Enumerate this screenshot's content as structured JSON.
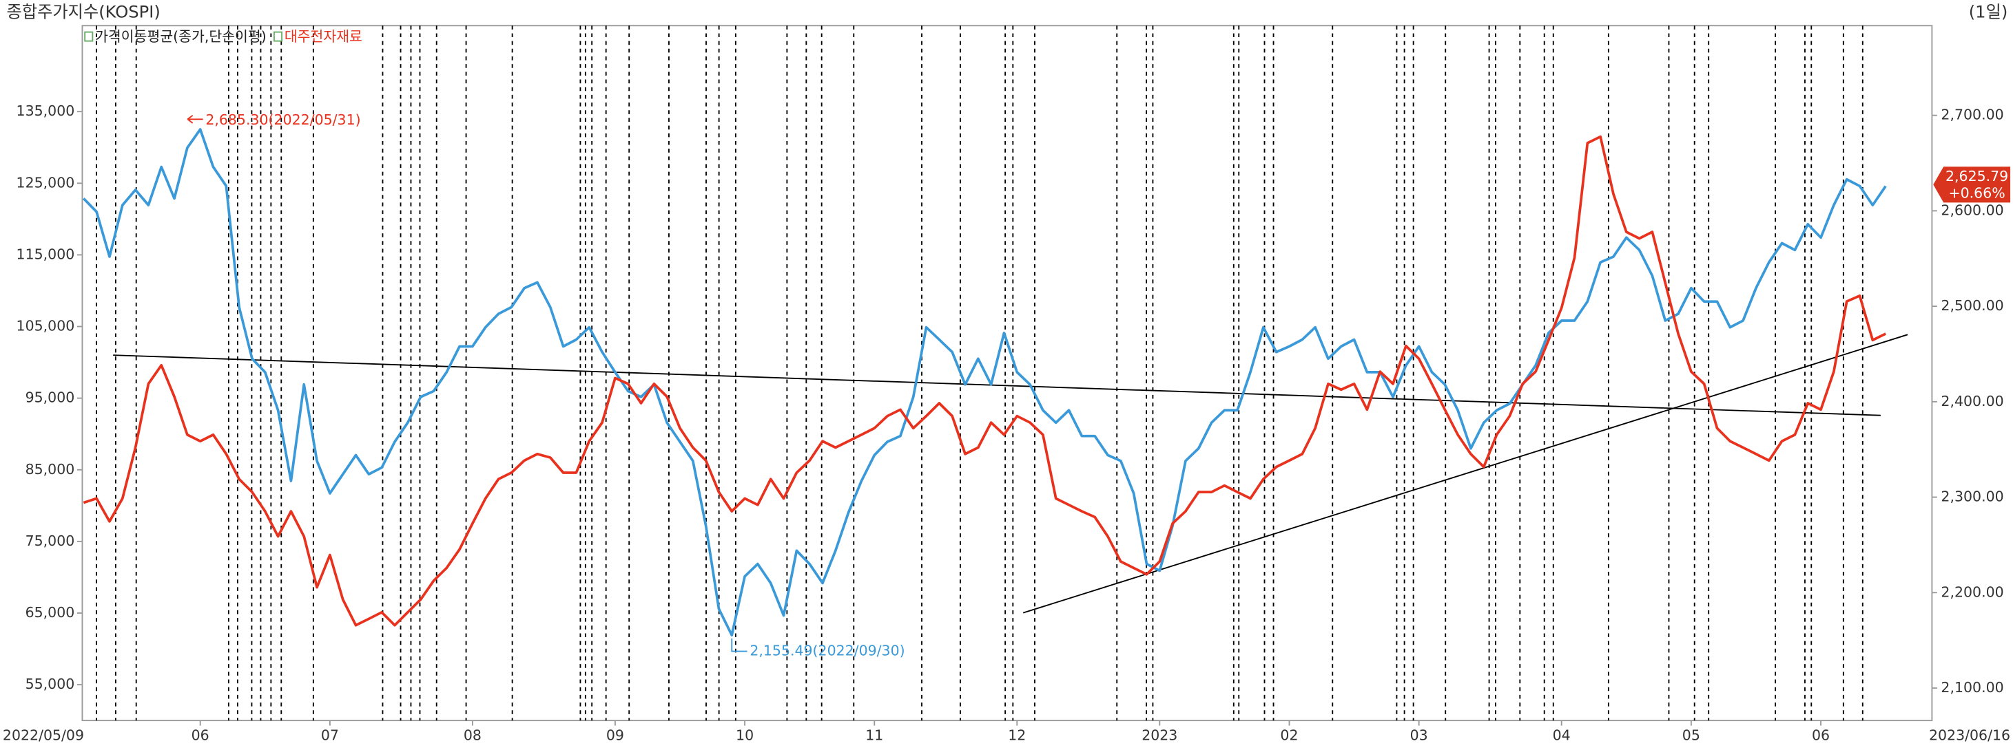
{
  "chart_data": {
    "type": "line",
    "title": "종합주가지수(KOSPI)",
    "period": "(1일)",
    "categories": [
      "2022/05/09",
      null,
      null,
      null,
      null,
      null,
      null,
      null,
      null,
      "06",
      null,
      null,
      null,
      null,
      null,
      null,
      null,
      null,
      null,
      "07",
      null,
      null,
      null,
      null,
      null,
      null,
      null,
      null,
      null,
      null,
      "08",
      null,
      null,
      null,
      null,
      null,
      null,
      null,
      null,
      null,
      null,
      "09",
      null,
      null,
      null,
      null,
      null,
      null,
      null,
      null,
      null,
      "10",
      null,
      null,
      null,
      null,
      null,
      null,
      null,
      null,
      null,
      "11",
      null,
      null,
      null,
      null,
      null,
      null,
      null,
      null,
      null,
      null,
      "12",
      null,
      null,
      null,
      null,
      null,
      null,
      null,
      null,
      null,
      null,
      "2023",
      null,
      null,
      null,
      null,
      null,
      null,
      null,
      null,
      null,
      "02",
      null,
      null,
      null,
      null,
      null,
      null,
      null,
      null,
      null,
      "03",
      null,
      null,
      null,
      null,
      null,
      null,
      null,
      null,
      null,
      null,
      "04",
      null,
      null,
      null,
      null,
      null,
      null,
      null,
      null,
      null,
      "05",
      null,
      null,
      null,
      null,
      null,
      null,
      null,
      null,
      null,
      "06",
      null,
      null,
      null,
      null,
      "2023/06/16"
    ],
    "series": [
      {
        "name": "가격이동평균(종가,단순이평)",
        "color": "#3a9ad9",
        "axis": "y2",
        "values": [
          2613,
          2599,
          2552,
          2606,
          2622,
          2606,
          2646,
          2613,
          2666,
          2685.3,
          2646,
          2626,
          2499,
          2445,
          2431,
          2391,
          2317,
          2418,
          2338,
          2304,
          2324,
          2344,
          2324,
          2331,
          2358,
          2378,
          2405,
          2411,
          2431,
          2458,
          2458,
          2478,
          2492,
          2499,
          2519,
          2525,
          2499,
          2458,
          2465,
          2478,
          2452,
          2431,
          2411,
          2405,
          2418,
          2378,
          2358,
          2338,
          2270,
          2183,
          2155.49,
          2217,
          2230,
          2210,
          2176,
          2244,
          2230,
          2210,
          2244,
          2284,
          2317,
          2344,
          2358,
          2364,
          2405,
          2478,
          2465,
          2452,
          2418,
          2445,
          2418,
          2472,
          2431,
          2418,
          2391,
          2378,
          2391,
          2364,
          2364,
          2344,
          2338,
          2304,
          2230,
          2223,
          2270,
          2338,
          2351,
          2378,
          2391,
          2391,
          2431,
          2478,
          2452,
          2458,
          2465,
          2478,
          2445,
          2458,
          2465,
          2431,
          2431,
          2405,
          2438,
          2458,
          2431,
          2418,
          2391,
          2351,
          2378,
          2391,
          2398,
          2418,
          2438,
          2472,
          2485,
          2485,
          2505,
          2546,
          2552,
          2572,
          2559,
          2532,
          2485,
          2492,
          2519,
          2505,
          2505,
          2478,
          2485,
          2519,
          2546,
          2566,
          2559,
          2586,
          2572,
          2606,
          2633,
          2626,
          2606,
          2625.79
        ]
      },
      {
        "name": "대주전자재료",
        "color": "#e8321e",
        "values": [
          80400,
          81000,
          77800,
          81000,
          88100,
          97000,
          99600,
          95200,
          89900,
          89000,
          89900,
          87200,
          83700,
          81900,
          79200,
          75700,
          79200,
          75700,
          68600,
          73100,
          66900,
          63300,
          64200,
          65100,
          63300,
          65100,
          66900,
          69500,
          71300,
          73900,
          77500,
          81000,
          83700,
          84600,
          86300,
          87200,
          86700,
          84600,
          84600,
          89000,
          91600,
          97800,
          97000,
          94300,
          97000,
          95200,
          90800,
          88100,
          86300,
          81900,
          79200,
          81000,
          80100,
          83700,
          81000,
          84600,
          86300,
          89000,
          88100,
          89000,
          89900,
          90800,
          92500,
          93400,
          90800,
          92500,
          94300,
          92500,
          87200,
          88100,
          91600,
          89900,
          92500,
          91600,
          89900,
          81000,
          80100,
          79200,
          78400,
          75700,
          72200,
          71300,
          70400,
          72200,
          77500,
          79200,
          81900,
          81900,
          82800,
          81900,
          81000,
          83700,
          85400,
          86300,
          87200,
          90800,
          97000,
          96200,
          97000,
          93400,
          98700,
          97000,
          102300,
          100500,
          97000,
          93400,
          89900,
          87200,
          85400,
          89900,
          92500,
          97000,
          98700,
          103100,
          107600,
          114600,
          130600,
          131500,
          123500,
          118200,
          117300,
          118200,
          111100,
          104000,
          98700,
          97000,
          90800,
          89000,
          88100,
          87200,
          86300,
          89000,
          89900,
          94300,
          93400,
          98700,
          108500,
          109300,
          103100,
          104000
        ]
      }
    ],
    "ylim": [
      50000,
      147000
    ],
    "yticks": [
      {
        "value": 55000,
        "label": "55,000"
      },
      {
        "value": 65000,
        "label": "65,000"
      },
      {
        "value": 75000,
        "label": "75,000"
      },
      {
        "value": 85000,
        "label": "85,000"
      },
      {
        "value": 95000,
        "label": "95,000"
      },
      {
        "value": 105000,
        "label": "105,000"
      },
      {
        "value": 115000,
        "label": "115,000"
      },
      {
        "value": 125000,
        "label": "125,000"
      },
      {
        "value": 135000,
        "label": "135,000"
      }
    ],
    "y2lim": [
      2066,
      2794
    ],
    "y2ticks": [
      {
        "value": 2100,
        "label": "2,100.00"
      },
      {
        "value": 2200,
        "label": "2,200.00"
      },
      {
        "value": 2300,
        "label": "2,300.00"
      },
      {
        "value": 2400,
        "label": "2,400.00"
      },
      {
        "value": 2500,
        "label": "2,500.00"
      },
      {
        "value": 2600,
        "label": "2,600.00"
      },
      {
        "value": 2700,
        "label": "2,700.00"
      }
    ],
    "annotations": [
      "2,685.30(2022/05/31)",
      "2,155.49(2022/09/30)"
    ],
    "last_label": "2,625.79",
    "change_label": "+0.66%"
  }
}
